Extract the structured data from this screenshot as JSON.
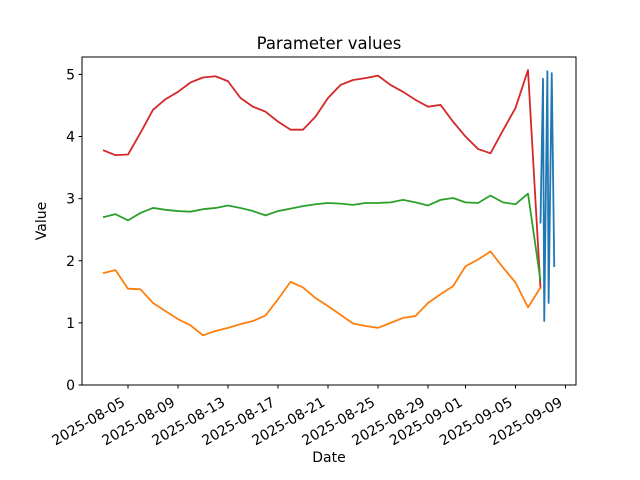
{
  "figure": {
    "background": "#ffffff"
  },
  "chart_data": {
    "type": "line",
    "title": "Parameter values",
    "xlabel": "Date",
    "ylabel": "Value",
    "grid": false,
    "legend": "none",
    "ylim": [
      0,
      5.28
    ],
    "xlim_days": [
      -1.68,
      37.84
    ],
    "yticks": [
      0,
      1,
      2,
      3,
      4,
      5
    ],
    "x_tick_labels": [
      "2025-08-05",
      "2025-08-09",
      "2025-08-13",
      "2025-08-17",
      "2025-08-21",
      "2025-08-25",
      "2025-08-29",
      "2025-09-01",
      "2025-09-05",
      "2025-09-09"
    ],
    "x_tick_rotation_deg": 30,
    "dates": [
      "2025-08-03",
      "2025-08-04",
      "2025-08-05",
      "2025-08-06",
      "2025-08-07",
      "2025-08-08",
      "2025-08-09",
      "2025-08-10",
      "2025-08-11",
      "2025-08-12",
      "2025-08-13",
      "2025-08-14",
      "2025-08-15",
      "2025-08-16",
      "2025-08-17",
      "2025-08-18",
      "2025-08-19",
      "2025-08-20",
      "2025-08-21",
      "2025-08-22",
      "2025-08-23",
      "2025-08-24",
      "2025-08-25",
      "2025-08-26",
      "2025-08-27",
      "2025-08-28",
      "2025-08-29",
      "2025-08-30",
      "2025-08-31",
      "2025-09-01",
      "2025-09-02",
      "2025-09-03",
      "2025-09-04",
      "2025-09-05",
      "2025-09-06",
      "2025-09-07"
    ],
    "series": [
      {
        "name": "red",
        "color": "#d62728",
        "values": [
          3.78,
          3.7,
          3.71,
          4.06,
          4.43,
          4.6,
          4.72,
          4.87,
          4.95,
          4.97,
          4.89,
          4.62,
          4.48,
          4.4,
          4.24,
          4.11,
          4.11,
          4.32,
          4.62,
          4.83,
          4.91,
          4.94,
          4.98,
          4.83,
          4.72,
          4.59,
          4.48,
          4.51,
          4.24,
          4.0,
          3.8,
          3.73,
          4.1,
          4.46,
          5.07,
          1.55
        ]
      },
      {
        "name": "green",
        "color": "#2ca02c",
        "values": [
          2.7,
          2.75,
          2.65,
          2.77,
          2.85,
          2.82,
          2.8,
          2.79,
          2.83,
          2.85,
          2.89,
          2.85,
          2.8,
          2.73,
          2.8,
          2.84,
          2.88,
          2.91,
          2.93,
          2.92,
          2.9,
          2.93,
          2.93,
          2.94,
          2.98,
          2.94,
          2.89,
          2.98,
          3.01,
          2.94,
          2.93,
          3.05,
          2.94,
          2.91,
          3.08,
          1.68
        ]
      },
      {
        "name": "orange",
        "color": "#ff7f0e",
        "values": [
          1.8,
          1.85,
          1.55,
          1.54,
          1.32,
          1.19,
          1.06,
          0.96,
          0.8,
          0.87,
          0.92,
          0.98,
          1.03,
          1.12,
          1.38,
          1.66,
          1.57,
          1.4,
          1.27,
          1.13,
          0.99,
          0.95,
          0.92,
          1.0,
          1.08,
          1.11,
          1.32,
          1.46,
          1.59,
          1.91,
          2.02,
          2.15,
          1.89,
          1.65,
          1.25,
          1.57
        ]
      },
      {
        "name": "blue",
        "color": "#1f77b4",
        "x_days": [
          35.0,
          35.2,
          35.3,
          35.55,
          35.65,
          35.9,
          36.1
        ],
        "values": [
          2.6,
          4.93,
          1.03,
          5.05,
          1.32,
          5.02,
          1.9
        ]
      }
    ]
  }
}
